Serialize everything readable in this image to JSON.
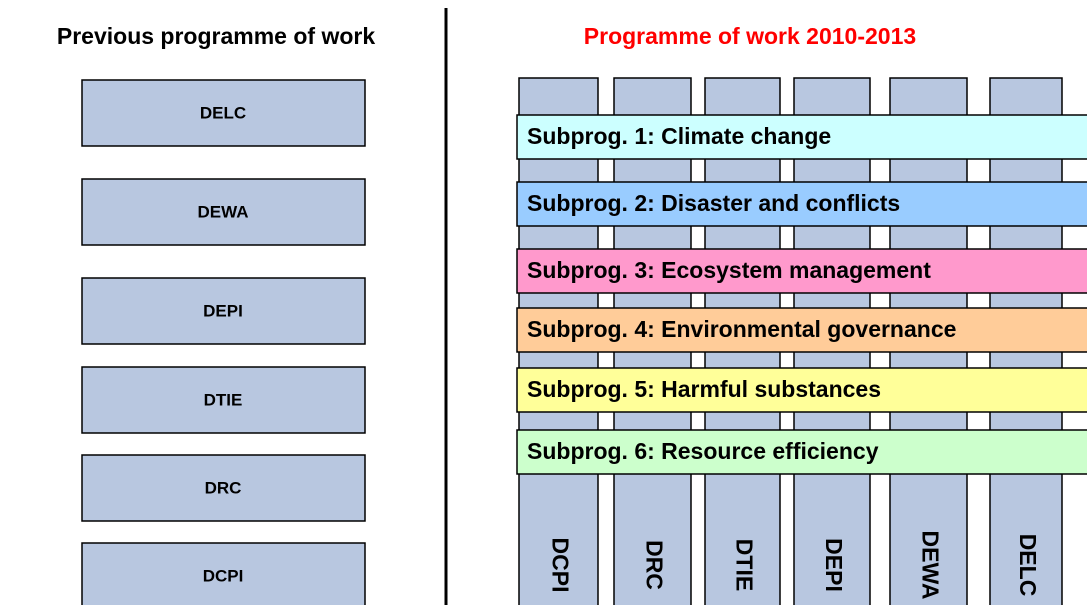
{
  "left": {
    "heading": "Previous programme of work",
    "boxes": [
      "DELC",
      "DEWA",
      "DEPI",
      "DTIE",
      "DRC",
      "DCPI"
    ]
  },
  "right": {
    "heading": "Programme of work 2010-2013",
    "columns": [
      "DCPI",
      "DRC",
      "DTIE",
      "DEPI",
      "DEWA",
      "DELC"
    ],
    "subprogrammes": [
      {
        "label": "Subprog. 1: Climate change",
        "color": "#ccffff"
      },
      {
        "label": "Subprog. 2: Disaster and conflicts",
        "color": "#99ccff"
      },
      {
        "label": "Subprog. 3: Ecosystem management",
        "color": "#ff99cc"
      },
      {
        "label": "Subprog. 4: Environmental governance",
        "color": "#ffcc99"
      },
      {
        "label": "Subprog. 5: Harmful substances",
        "color": "#ffff99"
      },
      {
        "label": "Subprog. 6: Resource efficiency",
        "color": "#ccffcc"
      }
    ]
  }
}
